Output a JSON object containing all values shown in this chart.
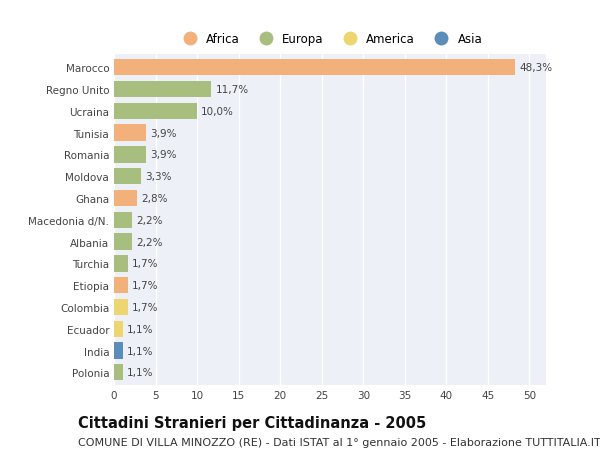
{
  "countries": [
    "Marocco",
    "Regno Unito",
    "Ucraina",
    "Tunisia",
    "Romania",
    "Moldova",
    "Ghana",
    "Macedonia d/N.",
    "Albania",
    "Turchia",
    "Etiopia",
    "Colombia",
    "Ecuador",
    "India",
    "Polonia"
  ],
  "values": [
    48.3,
    11.7,
    10.0,
    3.9,
    3.9,
    3.3,
    2.8,
    2.2,
    2.2,
    1.7,
    1.7,
    1.7,
    1.1,
    1.1,
    1.1
  ],
  "labels": [
    "48,3%",
    "11,7%",
    "10,0%",
    "3,9%",
    "3,9%",
    "3,3%",
    "2,8%",
    "2,2%",
    "2,2%",
    "1,7%",
    "1,7%",
    "1,7%",
    "1,1%",
    "1,1%",
    "1,1%"
  ],
  "continents": [
    "Africa",
    "Europa",
    "Europa",
    "Africa",
    "Europa",
    "Europa",
    "Africa",
    "Europa",
    "Europa",
    "Europa",
    "Africa",
    "America",
    "America",
    "Asia",
    "Europa"
  ],
  "continent_colors": {
    "Africa": "#F2B07B",
    "Europa": "#A8BE7E",
    "America": "#EDD670",
    "Asia": "#5B8DB8"
  },
  "legend_order": [
    "Africa",
    "Europa",
    "America",
    "Asia"
  ],
  "title": "Cittadini Stranieri per Cittadinanza - 2005",
  "subtitle": "COMUNE DI VILLA MINOZZO (RE) - Dati ISTAT al 1° gennaio 2005 - Elaborazione TUTTITALIA.IT",
  "xlim": [
    0,
    52
  ],
  "xticks": [
    0,
    5,
    10,
    15,
    20,
    25,
    30,
    35,
    40,
    45,
    50
  ],
  "background_color": "#ffffff",
  "plot_bg_color": "#eef0f7",
  "grid_color": "#ffffff",
  "bar_height": 0.75,
  "title_fontsize": 10.5,
  "subtitle_fontsize": 8,
  "label_fontsize": 7.5,
  "tick_fontsize": 7.5,
  "legend_fontsize": 8.5
}
